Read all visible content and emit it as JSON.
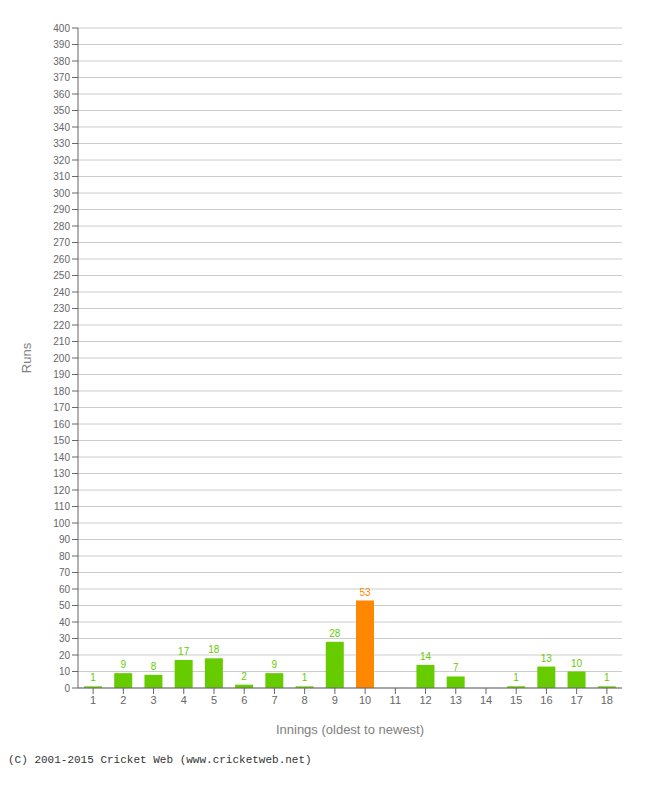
{
  "chart_data": {
    "type": "bar",
    "xlabel": "Innings (oldest to newest)",
    "ylabel": "Runs",
    "categories": [
      1,
      2,
      3,
      4,
      5,
      6,
      7,
      8,
      9,
      10,
      11,
      12,
      13,
      14,
      15,
      16,
      17,
      18
    ],
    "values": [
      1,
      9,
      8,
      17,
      18,
      2,
      9,
      1,
      28,
      53,
      0,
      14,
      7,
      0,
      1,
      13,
      10,
      1
    ],
    "colors": [
      "#66cc00",
      "#66cc00",
      "#66cc00",
      "#66cc00",
      "#66cc00",
      "#66cc00",
      "#66cc00",
      "#66cc00",
      "#66cc00",
      "#ff8800",
      "#66cc00",
      "#66cc00",
      "#66cc00",
      "#66cc00",
      "#66cc00",
      "#66cc00",
      "#66cc00",
      "#66cc00"
    ],
    "ylim": [
      0,
      400
    ],
    "yticks": [
      0,
      10,
      20,
      30,
      40,
      50,
      60,
      70,
      80,
      90,
      100,
      110,
      120,
      130,
      140,
      150,
      160,
      170,
      180,
      190,
      200,
      210,
      220,
      230,
      240,
      250,
      260,
      270,
      280,
      290,
      300,
      310,
      320,
      330,
      340,
      350,
      360,
      370,
      380,
      390,
      400
    ],
    "grid": true,
    "data_labels": true,
    "annotations": [
      "(C) 2001-2015 Cricket Web (www.cricketweb.net)"
    ]
  }
}
